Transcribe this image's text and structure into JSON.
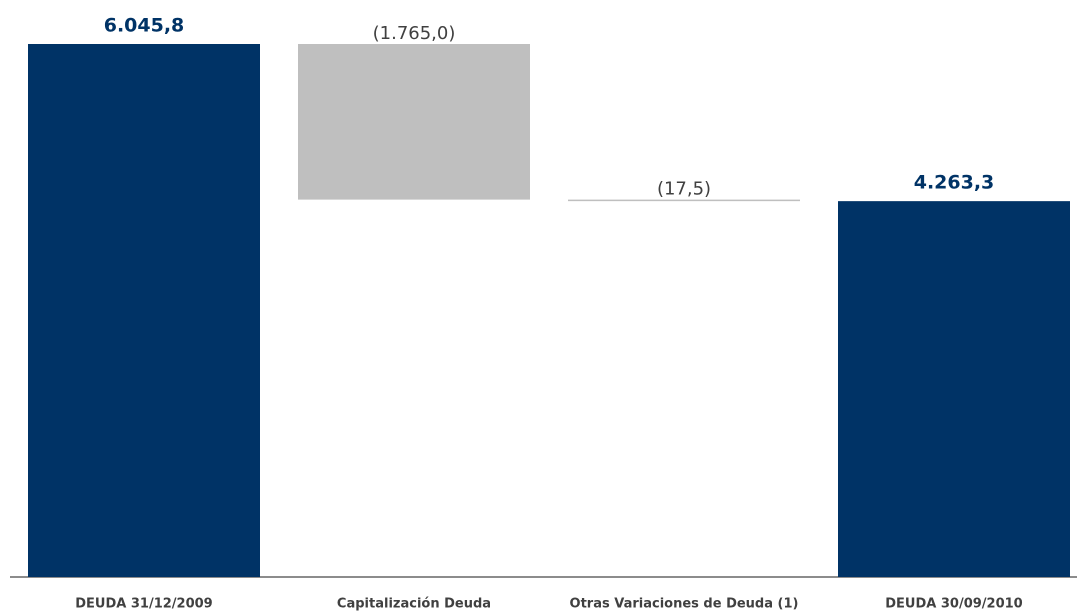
{
  "chart_data": {
    "type": "waterfall",
    "categories": [
      "DEUDA 31/12/2009",
      "Capitalización Deuda",
      "Otras Variaciones de Deuda (1)",
      "DEUDA 30/09/2010"
    ],
    "values": [
      6045.8,
      -1765.0,
      -17.5,
      4263.3
    ],
    "value_labels": [
      "6.045,8",
      "(1.765,0)",
      "(17,5)",
      "4.263,3"
    ],
    "measure": [
      "absolute",
      "relative",
      "relative",
      "total"
    ],
    "colors": [
      "#003366",
      "#bfbfbf",
      "#bfbfbf",
      "#003366"
    ]
  }
}
